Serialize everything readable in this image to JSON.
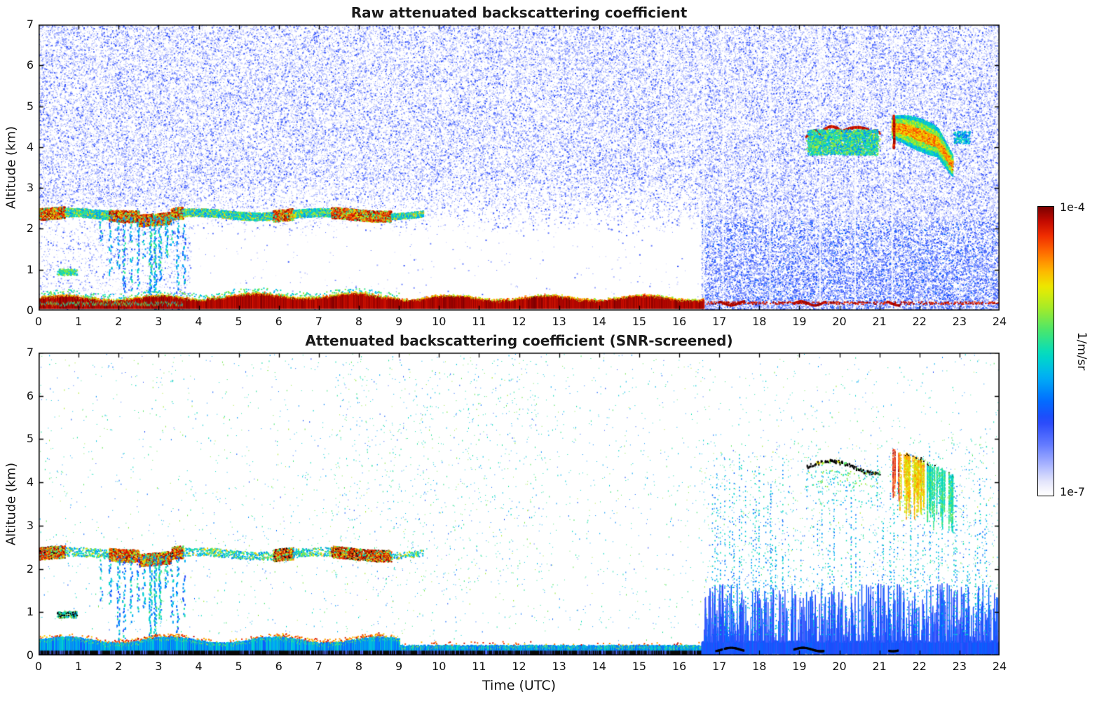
{
  "chart_data": {
    "type": "heatmap",
    "xlabel": "Time (UTC)",
    "x_range": [
      0,
      24
    ],
    "y_range": [
      0,
      7
    ],
    "x_ticks": [
      0,
      1,
      2,
      3,
      4,
      5,
      6,
      7,
      8,
      9,
      10,
      11,
      12,
      13,
      14,
      15,
      16,
      17,
      18,
      19,
      20,
      21,
      22,
      23,
      24
    ],
    "y_ticks": [
      0,
      1,
      2,
      3,
      4,
      5,
      6,
      7
    ],
    "colorbar": {
      "max_label": "1e-4",
      "min_label": "1e-7",
      "unit": "1/m/sr",
      "scale": "log"
    },
    "panels": [
      {
        "id": "raw",
        "title": "Raw attenuated backscattering coefficient",
        "ylabel": "Altitude (km)",
        "screened": false
      },
      {
        "id": "screened",
        "title": "Attenuated backscattering coefficient (SNR-screened)",
        "ylabel": "Altitude (km)",
        "screened": true
      }
    ],
    "features": {
      "aerosol_layer": {
        "time_range": [
          0,
          9.6
        ],
        "altitude_range": [
          2.15,
          2.55
        ],
        "segments": [
          {
            "t": [
              0,
              0.65
            ],
            "s": 0.95
          },
          {
            "t": [
              0.65,
              1.75
            ],
            "s": 0.55
          },
          {
            "t": [
              1.75,
              3.6
            ],
            "s": 0.95
          },
          {
            "t": [
              3.6,
              5.85
            ],
            "s": 0.45
          },
          {
            "t": [
              5.85,
              6.35
            ],
            "s": 0.9
          },
          {
            "t": [
              6.35,
              7.3
            ],
            "s": 0.5
          },
          {
            "t": [
              7.3,
              8.8
            ],
            "s": 0.85
          },
          {
            "t": [
              8.8,
              9.6
            ],
            "s": 0.25
          }
        ]
      },
      "precip_streaks": {
        "time_range": [
          1.45,
          3.7
        ],
        "top_altitude": 2.3
      },
      "surface_layer": {
        "altitude_range": [
          0,
          0.45
        ]
      },
      "noise_void": {
        "time_range": [
          3.8,
          16.55
        ],
        "below_altitude": 3.2
      },
      "boundary_layer_noise": {
        "time_range": [
          16.55,
          24
        ]
      },
      "clouds": [
        {
          "time_range": [
            19.1,
            21.0
          ],
          "altitude_range": [
            3.8,
            4.6
          ],
          "style": "thin-ice"
        },
        {
          "time_range": [
            21.25,
            22.85
          ],
          "altitude_range": [
            3.4,
            4.8
          ],
          "style": "virga"
        }
      ]
    },
    "seed": 42
  }
}
